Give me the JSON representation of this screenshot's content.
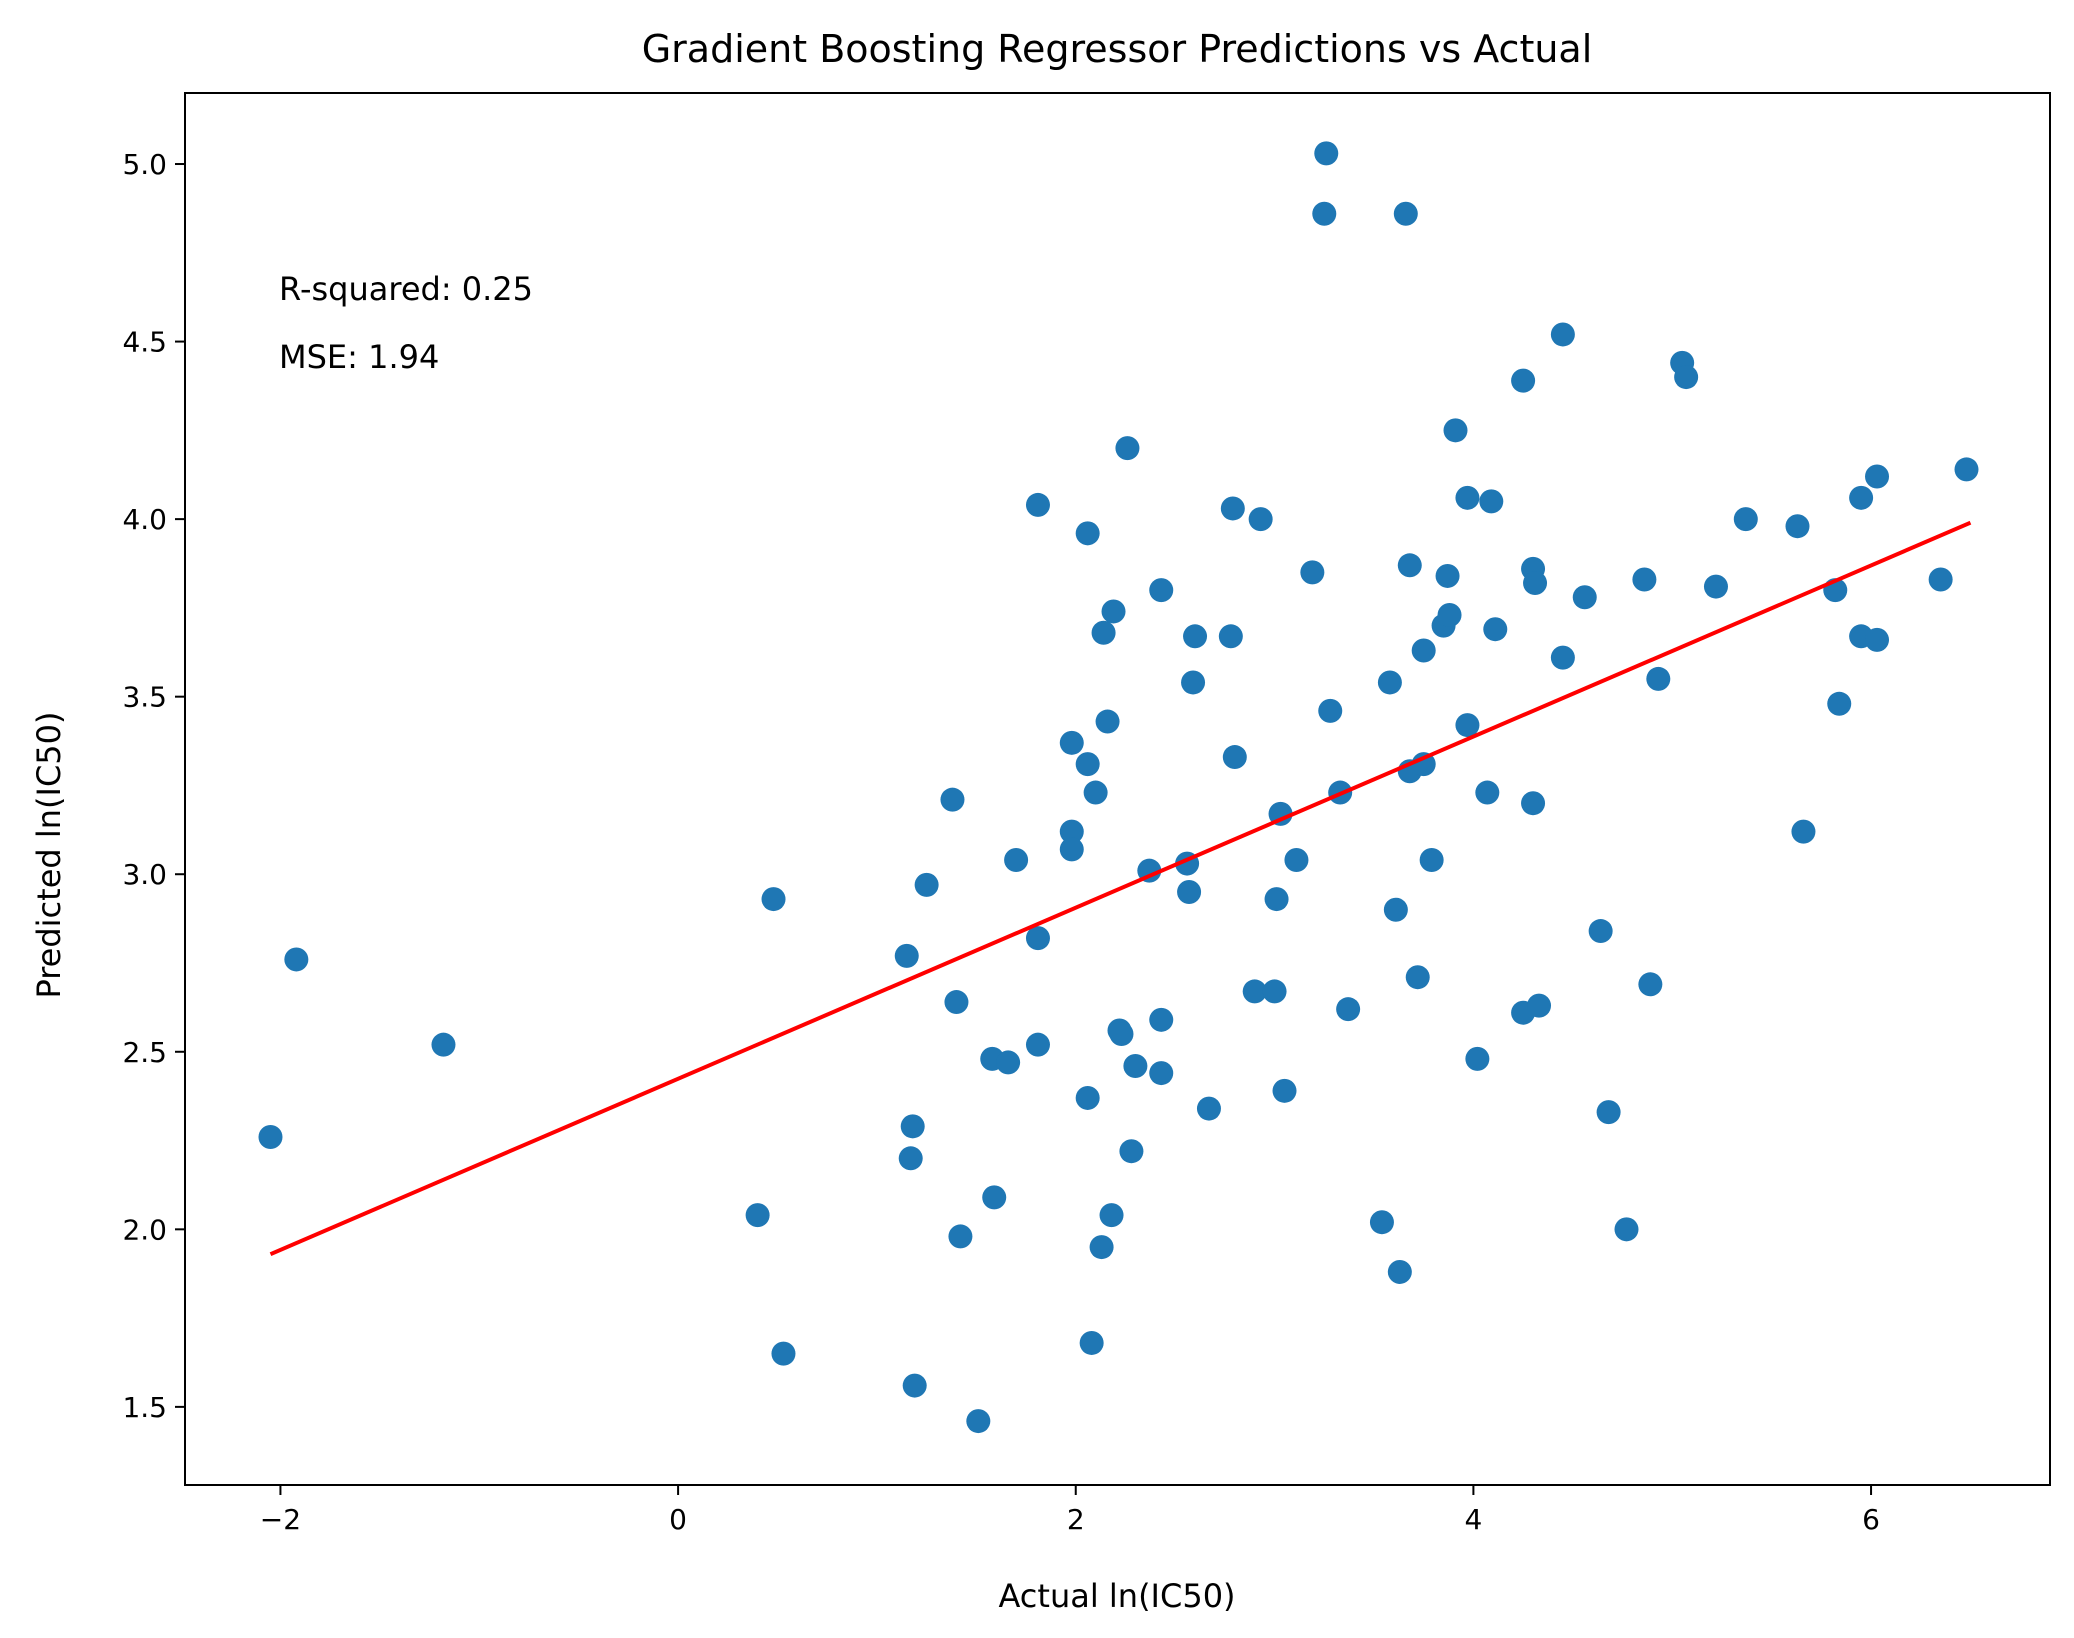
{
  "chart_data": {
    "type": "scatter",
    "title": "Gradient Boosting Regressor Predictions vs Actual",
    "xlabel": "Actual ln(IC50)",
    "ylabel": "Predicted ln(IC50)",
    "xlim": [
      -2.48,
      6.9
    ],
    "ylim": [
      1.28,
      5.2
    ],
    "xticks": [
      -2,
      0,
      2,
      4,
      6
    ],
    "xtick_labels": [
      "−2",
      "0",
      "2",
      "4",
      "6"
    ],
    "yticks": [
      1.5,
      2.0,
      2.5,
      3.0,
      3.5,
      4.0,
      4.5,
      5.0
    ],
    "ytick_labels": [
      "1.5",
      "2.0",
      "2.5",
      "3.0",
      "3.5",
      "4.0",
      "4.5",
      "5.0"
    ],
    "grid": false,
    "annotations": [
      "R-squared: 0.25",
      "MSE: 1.94"
    ],
    "colors": {
      "points": "#1f77b4",
      "fit_line": "#ff0000"
    },
    "fit_line": {
      "x": [
        -2.05,
        6.5
      ],
      "y": [
        1.93,
        3.99
      ]
    },
    "series": [
      {
        "points": [
          [
            -2.05,
            2.26
          ],
          [
            -1.92,
            2.76
          ],
          [
            -1.18,
            2.52
          ],
          [
            0.4,
            2.04
          ],
          [
            0.48,
            2.93
          ],
          [
            0.53,
            1.65
          ],
          [
            1.15,
            2.77
          ],
          [
            1.17,
            2.2
          ],
          [
            1.18,
            2.29
          ],
          [
            1.19,
            1.56
          ],
          [
            1.25,
            2.97
          ],
          [
            1.38,
            3.21
          ],
          [
            1.4,
            2.64
          ],
          [
            1.42,
            1.98
          ],
          [
            1.51,
            1.46
          ],
          [
            1.58,
            2.48
          ],
          [
            1.59,
            2.09
          ],
          [
            1.66,
            2.47
          ],
          [
            1.7,
            3.04
          ],
          [
            1.81,
            4.04
          ],
          [
            1.81,
            2.82
          ],
          [
            1.81,
            2.52
          ],
          [
            1.98,
            3.37
          ],
          [
            1.98,
            3.12
          ],
          [
            1.98,
            3.07
          ],
          [
            2.06,
            3.96
          ],
          [
            2.06,
            3.31
          ],
          [
            2.06,
            2.37
          ],
          [
            2.08,
            1.68
          ],
          [
            2.1,
            3.23
          ],
          [
            2.13,
            1.95
          ],
          [
            2.14,
            3.68
          ],
          [
            2.16,
            3.43
          ],
          [
            2.18,
            2.04
          ],
          [
            2.19,
            3.74
          ],
          [
            2.22,
            2.56
          ],
          [
            2.23,
            2.55
          ],
          [
            2.26,
            4.2
          ],
          [
            2.28,
            2.22
          ],
          [
            2.3,
            2.46
          ],
          [
            2.37,
            3.01
          ],
          [
            2.43,
            3.8
          ],
          [
            2.43,
            2.59
          ],
          [
            2.43,
            2.44
          ],
          [
            2.56,
            3.03
          ],
          [
            2.57,
            2.95
          ],
          [
            2.59,
            3.54
          ],
          [
            2.6,
            3.67
          ],
          [
            2.67,
            2.34
          ],
          [
            2.78,
            3.67
          ],
          [
            2.79,
            4.03
          ],
          [
            2.8,
            3.33
          ],
          [
            2.9,
            2.67
          ],
          [
            2.93,
            4.0
          ],
          [
            3.0,
            2.67
          ],
          [
            3.01,
            2.93
          ],
          [
            3.03,
            3.17
          ],
          [
            3.05,
            2.39
          ],
          [
            3.11,
            3.04
          ],
          [
            3.19,
            3.85
          ],
          [
            3.25,
            4.86
          ],
          [
            3.26,
            5.03
          ],
          [
            3.28,
            3.46
          ],
          [
            3.33,
            3.23
          ],
          [
            3.37,
            2.62
          ],
          [
            3.54,
            2.02
          ],
          [
            3.58,
            3.54
          ],
          [
            3.61,
            2.9
          ],
          [
            3.63,
            1.88
          ],
          [
            3.66,
            4.86
          ],
          [
            3.68,
            3.87
          ],
          [
            3.68,
            3.29
          ],
          [
            3.72,
            2.71
          ],
          [
            3.75,
            3.63
          ],
          [
            3.75,
            3.31
          ],
          [
            3.79,
            3.04
          ],
          [
            3.85,
            3.7
          ],
          [
            3.87,
            3.84
          ],
          [
            3.88,
            3.73
          ],
          [
            3.91,
            4.25
          ],
          [
            3.97,
            4.06
          ],
          [
            3.97,
            3.42
          ],
          [
            4.02,
            2.48
          ],
          [
            4.07,
            3.23
          ],
          [
            4.09,
            4.05
          ],
          [
            4.11,
            3.69
          ],
          [
            4.25,
            4.39
          ],
          [
            4.25,
            2.61
          ],
          [
            4.3,
            3.86
          ],
          [
            4.3,
            3.2
          ],
          [
            4.31,
            3.82
          ],
          [
            4.33,
            2.63
          ],
          [
            4.45,
            4.52
          ],
          [
            4.45,
            3.61
          ],
          [
            4.56,
            3.78
          ],
          [
            4.64,
            2.84
          ],
          [
            4.68,
            2.33
          ],
          [
            4.77,
            2.0
          ],
          [
            4.86,
            3.83
          ],
          [
            4.89,
            2.69
          ],
          [
            4.93,
            3.55
          ],
          [
            5.05,
            4.44
          ],
          [
            5.07,
            4.4
          ],
          [
            5.22,
            3.81
          ],
          [
            5.37,
            4.0
          ],
          [
            5.63,
            3.98
          ],
          [
            5.66,
            3.12
          ],
          [
            5.82,
            3.8
          ],
          [
            5.84,
            3.48
          ],
          [
            5.95,
            4.06
          ],
          [
            5.95,
            3.67
          ],
          [
            6.03,
            4.12
          ],
          [
            6.03,
            3.66
          ],
          [
            6.35,
            3.83
          ],
          [
            6.48,
            4.14
          ]
        ]
      }
    ]
  }
}
